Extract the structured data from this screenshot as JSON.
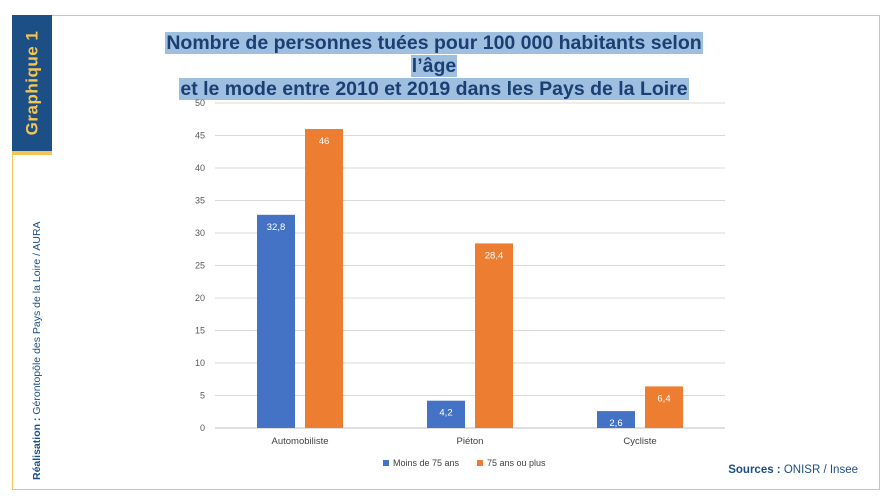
{
  "side_tab": {
    "label": "Graphique 1"
  },
  "credit": {
    "label": "Réalisation :",
    "text": " Gérontopôle des Pays de la Loire / AURA"
  },
  "sources": {
    "label": "Sources :",
    "text": " ONISR / Insee"
  },
  "colors": {
    "series1": "#4472c4",
    "series2": "#ed7d31",
    "accent": "#f4c552",
    "navy": "#1b4f86"
  },
  "chart_data": {
    "type": "bar",
    "title_line1": "Nombre de personnes tuées pour 100 000 habitants selon l’âge",
    "title_line2": "et le mode entre 2010 et 2019 dans les Pays de la Loire",
    "categories": [
      "Automobiliste",
      "Piéton",
      "Cycliste"
    ],
    "series": [
      {
        "name": "Moins de 75 ans",
        "values": [
          32.8,
          4.2,
          2.6
        ],
        "labels": [
          "32,8",
          "4,2",
          "2,6"
        ]
      },
      {
        "name": "75 ans ou plus",
        "values": [
          46,
          28.4,
          6.4
        ],
        "labels": [
          "46",
          "28,4",
          "6,4"
        ]
      }
    ],
    "ylim": [
      0,
      50
    ],
    "yticks": [
      0,
      5,
      10,
      15,
      20,
      25,
      30,
      35,
      40,
      45,
      50
    ],
    "grid": true,
    "legend_position": "bottom"
  }
}
